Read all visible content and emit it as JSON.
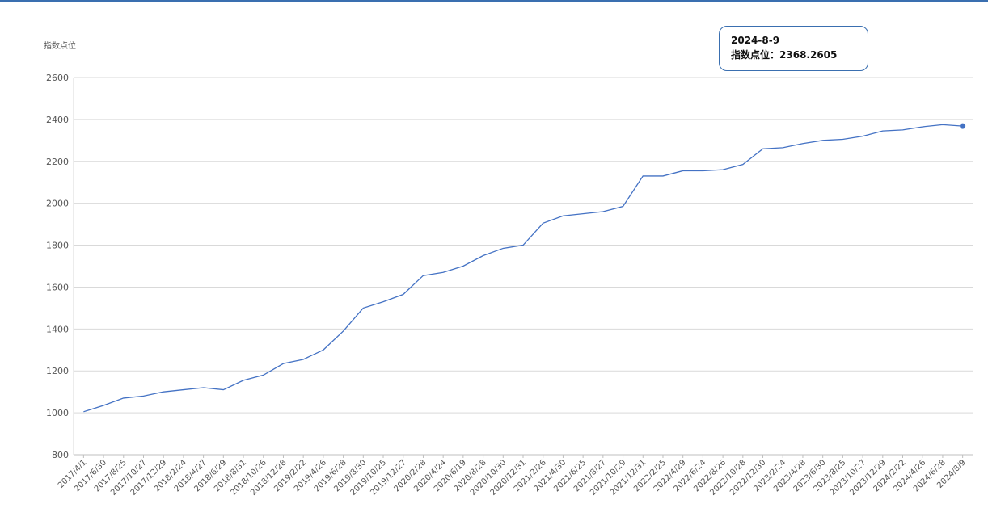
{
  "chart_data": {
    "type": "line",
    "y_label": "指数点位",
    "categories": [
      "2017/4/1",
      "2017/6/30",
      "2017/8/25",
      "2017/10/27",
      "2017/12/29",
      "2018/2/24",
      "2018/4/27",
      "2018/6/29",
      "2018/8/31",
      "2018/10/26",
      "2018/12/28",
      "2019/2/22",
      "2019/4/26",
      "2019/6/28",
      "2019/8/30",
      "2019/10/25",
      "2019/12/27",
      "2020/2/28",
      "2020/4/24",
      "2020/6/19",
      "2020/8/28",
      "2020/10/30",
      "2020/12/31",
      "2021/2/26",
      "2021/4/30",
      "2021/6/25",
      "2021/8/27",
      "2021/10/29",
      "2021/12/31",
      "2022/2/25",
      "2022/4/29",
      "2022/6/24",
      "2022/8/26",
      "2022/10/28",
      "2022/12/30",
      "2023/2/24",
      "2023/4/28",
      "2023/6/30",
      "2023/8/25",
      "2023/10/27",
      "2023/12/29",
      "2024/2/22",
      "2024/4/26",
      "2024/6/28",
      "2024/8/9"
    ],
    "series": [
      {
        "name": "指数点位",
        "color": "#4472c4",
        "values": [
          1005,
          1035,
          1070,
          1080,
          1100,
          1110,
          1120,
          1110,
          1155,
          1180,
          1235,
          1255,
          1300,
          1390,
          1500,
          1530,
          1565,
          1655,
          1670,
          1700,
          1750,
          1785,
          1800,
          1905,
          1940,
          1950,
          1960,
          1985,
          2130,
          2130,
          2155,
          2155,
          2160,
          2185,
          2260,
          2265,
          2285,
          2300,
          2305,
          2320,
          2345,
          2350,
          2365,
          2375,
          2368.2605
        ]
      }
    ],
    "ylim": [
      800,
      2600
    ],
    "yticks": [
      800,
      1000,
      1200,
      1400,
      1600,
      1800,
      2000,
      2200,
      2400,
      2600
    ],
    "grid": true,
    "tooltip": {
      "date": "2024-8-9",
      "label": "指数点位："
    }
  }
}
